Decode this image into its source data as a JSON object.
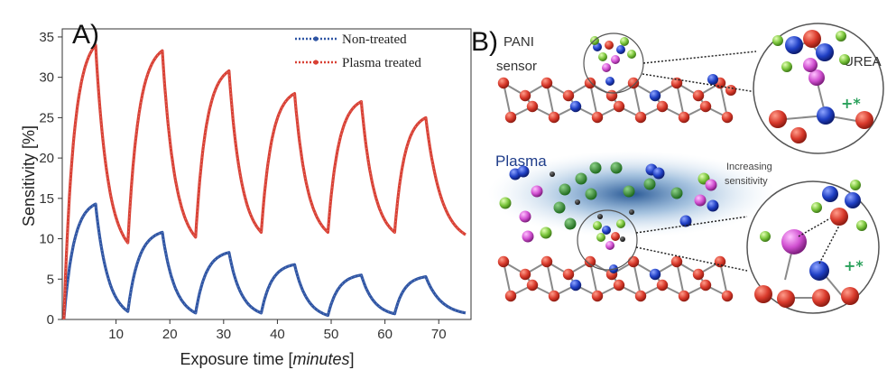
{
  "chart_data": [
    {
      "type": "line",
      "panel_label": "A)",
      "ylabel": "Sensitivity [%]",
      "xlabel_main": "Exposure time [",
      "xlabel_unit": "minutes",
      "xlabel_end": "]",
      "xlim": [
        0,
        76
      ],
      "ylim": [
        0,
        36
      ],
      "xticks": [
        10,
        20,
        30,
        40,
        50,
        60,
        70
      ],
      "yticks": [
        0,
        5,
        10,
        15,
        20,
        25,
        30,
        35
      ],
      "legend_position": "top-right",
      "series": [
        {
          "name": "Non-treated",
          "color": "#2f55a4",
          "cycles": [
            {
              "x0": 0.3,
              "y0": 0.0,
              "x1": 6.2,
              "y1": 14.3,
              "x2": 12.2,
              "y2": 1.0
            },
            {
              "x0": 12.2,
              "y0": 1.0,
              "x1": 18.6,
              "y1": 10.8,
              "x2": 24.8,
              "y2": 0.8
            },
            {
              "x0": 24.8,
              "y0": 0.8,
              "x1": 31.0,
              "y1": 8.3,
              "x2": 37.0,
              "y2": 0.8
            },
            {
              "x0": 37.0,
              "y0": 0.8,
              "x1": 43.2,
              "y1": 6.8,
              "x2": 49.4,
              "y2": 0.5
            },
            {
              "x0": 49.4,
              "y0": 0.5,
              "x1": 55.6,
              "y1": 5.5,
              "x2": 61.8,
              "y2": 0.7
            },
            {
              "x0": 61.8,
              "y0": 0.7,
              "x1": 67.6,
              "y1": 5.3,
              "x2": 75.0,
              "y2": 0.8
            }
          ]
        },
        {
          "name": "Plasma treated",
          "color": "#d94135",
          "cycles": [
            {
              "x0": 0.3,
              "y0": 0.0,
              "x1": 6.2,
              "y1": 34.0,
              "x2": 12.2,
              "y2": 9.5
            },
            {
              "x0": 12.2,
              "y0": 9.5,
              "x1": 18.6,
              "y1": 33.3,
              "x2": 24.8,
              "y2": 10.2
            },
            {
              "x0": 24.8,
              "y0": 10.2,
              "x1": 31.0,
              "y1": 30.8,
              "x2": 37.0,
              "y2": 10.8
            },
            {
              "x0": 37.0,
              "y0": 10.8,
              "x1": 43.2,
              "y1": 28.0,
              "x2": 49.4,
              "y2": 10.8
            },
            {
              "x0": 49.4,
              "y0": 10.8,
              "x1": 55.6,
              "y1": 27.0,
              "x2": 61.8,
              "y2": 10.8
            },
            {
              "x0": 61.8,
              "y0": 10.8,
              "x1": 67.6,
              "y1": 25.0,
              "x2": 75.0,
              "y2": 10.5
            }
          ]
        }
      ]
    }
  ],
  "diagram": {
    "panel_label": "B)",
    "sensor_label_1": "PANI",
    "sensor_label_2": "sensor",
    "urea_label": "UREA",
    "plasma_label": "Plasma",
    "increasing_1": "Increasing",
    "increasing_2": "sensitivity",
    "charge_symbol": "+*",
    "colors": {
      "red_atom": "#d8392b",
      "blue_atom": "#1f3fc4",
      "green_atom": "#79c43a",
      "magenta_atom": "#d04fd0",
      "plasma_glow": "#2d6fb0"
    }
  }
}
